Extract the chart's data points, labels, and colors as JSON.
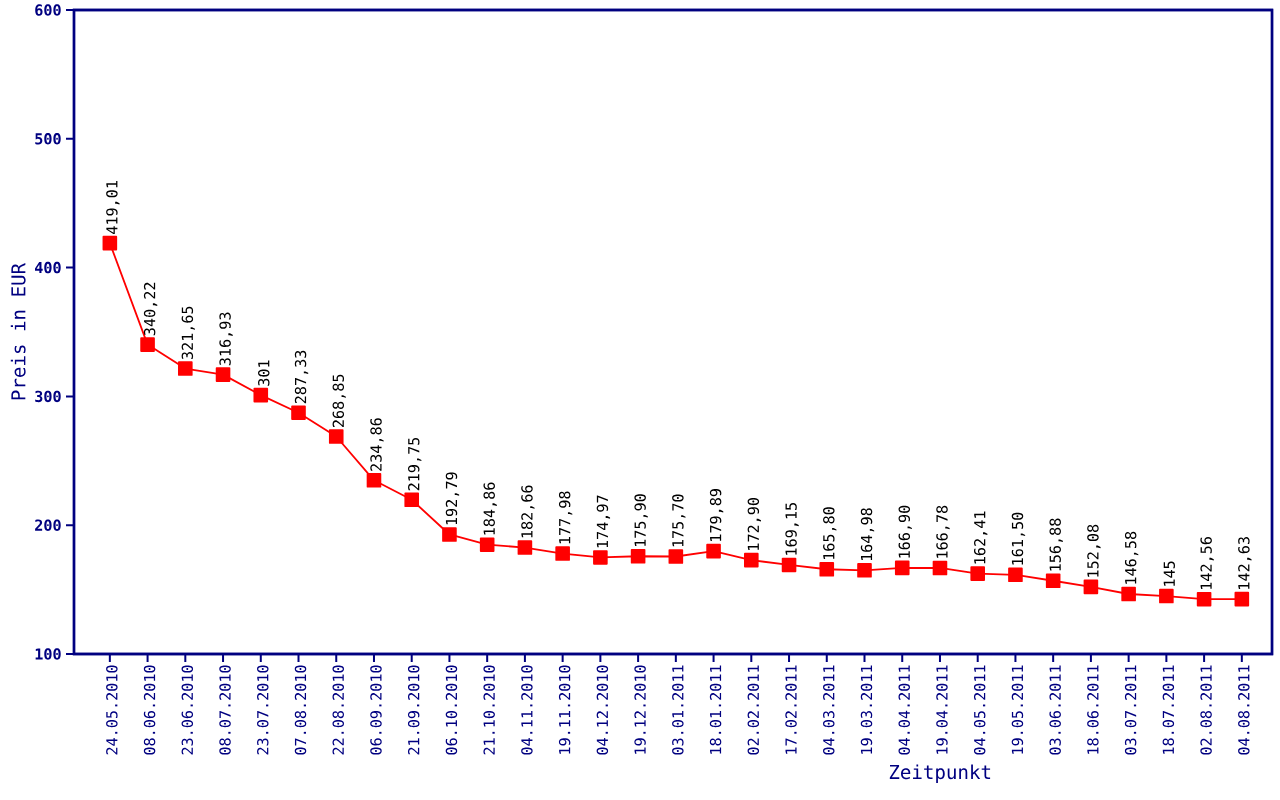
{
  "chart_data": {
    "type": "line",
    "xlabel": "Zeitpunkt",
    "ylabel": "Preis in EUR",
    "categories": [
      "24.05.2010",
      "08.06.2010",
      "23.06.2010",
      "08.07.2010",
      "23.07.2010",
      "07.08.2010",
      "22.08.2010",
      "06.09.2010",
      "21.09.2010",
      "06.10.2010",
      "21.10.2010",
      "04.11.2010",
      "19.11.2010",
      "04.12.2010",
      "19.12.2010",
      "03.01.2011",
      "18.01.2011",
      "02.02.2011",
      "17.02.2011",
      "04.03.2011",
      "19.03.2011",
      "04.04.2011",
      "19.04.2011",
      "04.05.2011",
      "19.05.2011",
      "03.06.2011",
      "18.06.2011",
      "03.07.2011",
      "18.07.2011",
      "02.08.2011",
      "04.08.2011"
    ],
    "values": [
      419.01,
      340.22,
      321.65,
      316.93,
      301,
      287.33,
      268.85,
      234.86,
      219.75,
      192.79,
      184.86,
      182.66,
      177.98,
      174.97,
      175.9,
      175.7,
      179.89,
      172.9,
      169.15,
      165.8,
      164.98,
      166.9,
      166.78,
      162.41,
      161.5,
      156.88,
      152.08,
      146.58,
      145,
      142.56,
      142.63
    ],
    "value_labels": [
      "419,01",
      "340,22",
      "321,65",
      "316,93",
      "301",
      "287,33",
      "268,85",
      "234,86",
      "219,75",
      "192,79",
      "184,86",
      "182,66",
      "177,98",
      "174,97",
      "175,90",
      "175,70",
      "179,89",
      "172,90",
      "169,15",
      "165,80",
      "164,98",
      "166,90",
      "166,78",
      "162,41",
      "161,50",
      "156,88",
      "152,08",
      "146,58",
      "145",
      "142,56",
      "142,63"
    ],
    "color": "#ff0000",
    "marker": "square",
    "line_style": "solid",
    "grid": false,
    "ylim": [
      100,
      600
    ],
    "yticks": [
      100,
      200,
      300,
      400,
      500,
      600
    ]
  }
}
